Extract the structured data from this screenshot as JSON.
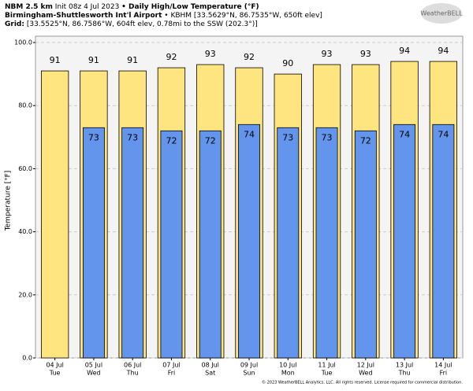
{
  "header": {
    "model": "NBM 2.5 km",
    "init": "Init 08z 4 Jul 2023",
    "product": "• Daily High/Low Temperature (°F)",
    "station": "Birmingham-Shuttlesworth Int'l Airport",
    "station_info": "• KBHM [33.5629°N, 86.7535°W, 650ft elev]",
    "grid_label": "Grid:",
    "grid_info": "[33.5525°N, 86.7586°W, 604ft elev, 0.78mi to the SSW (202.3°)]",
    "logo": "WeatherBELL"
  },
  "footer": "© 2023 WeatherBELL Analytics, LLC. All rights reserved. License required for commercial distribution.",
  "chart_data": {
    "type": "bar",
    "y_label": "Temperature [°F]",
    "categories": [
      "04 Jul",
      "05 Jul",
      "06 Jul",
      "07 Jul",
      "08 Jul",
      "09 Jul",
      "10 Jul",
      "11 Jul",
      "12 Jul",
      "13 Jul",
      "14 Jul"
    ],
    "category_days": [
      "Tue",
      "Wed",
      "Thu",
      "Fri",
      "Sat",
      "Sun",
      "Mon",
      "Tue",
      "Wed",
      "Thu",
      "Fri"
    ],
    "series": [
      {
        "name": "High",
        "color": "#ffe57f",
        "values": [
          91,
          91,
          91,
          92,
          93,
          92,
          90,
          93,
          93,
          94,
          94
        ]
      },
      {
        "name": "Low",
        "color": "#6495ed",
        "values": [
          null,
          73,
          73,
          72,
          72,
          74,
          73,
          73,
          72,
          74,
          74
        ]
      }
    ],
    "ylim": [
      0,
      102
    ],
    "yticks": [
      {
        "value": 0,
        "label": "0.0"
      },
      {
        "value": 20,
        "label": "20.0"
      },
      {
        "value": 40,
        "label": "40.0"
      },
      {
        "value": 60,
        "label": "60.0"
      },
      {
        "value": 80,
        "label": "80.0"
      },
      {
        "value": 100,
        "label": "100.0"
      }
    ],
    "grid": true
  }
}
